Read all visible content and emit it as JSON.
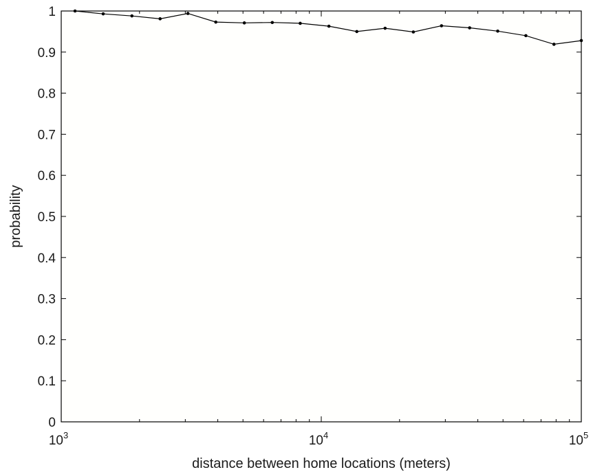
{
  "chart_data": {
    "type": "line",
    "xlabel": "distance between home locations (meters)",
    "ylabel": "probability",
    "xscale": "log",
    "xlim": [
      1000,
      100000
    ],
    "ylim": [
      0,
      1
    ],
    "grid": false,
    "x_tick_labels": [
      {
        "base": "10",
        "exp": "3"
      },
      {
        "base": "10",
        "exp": "4"
      },
      {
        "base": "10",
        "exp": "5"
      }
    ],
    "y_tick_labels": [
      "0",
      "0.1",
      "0.2",
      "0.3",
      "0.4",
      "0.5",
      "0.6",
      "0.7",
      "0.8",
      "0.9",
      "1"
    ],
    "series": [
      {
        "x": [
          1130,
          1450,
          1870,
          2400,
          3070,
          3930,
          5060,
          6480,
          8300,
          10700,
          13700,
          17600,
          22600,
          29000,
          37200,
          47700,
          61200,
          78500,
          100000
        ],
        "y": [
          1.0,
          0.993,
          0.988,
          0.981,
          0.994,
          0.973,
          0.971,
          0.972,
          0.97,
          0.963,
          0.95,
          0.958,
          0.949,
          0.964,
          0.959,
          0.951,
          0.94,
          0.919,
          0.928
        ]
      }
    ]
  }
}
